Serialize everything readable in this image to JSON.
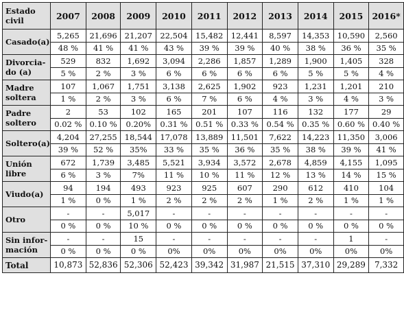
{
  "table": {
    "corner_label": "Estado civil",
    "years": [
      "2007",
      "2008",
      "2009",
      "2010",
      "2011",
      "2012",
      "2013",
      "2014",
      "2015",
      "2016*"
    ],
    "rows": [
      {
        "label": "Casado(a)",
        "counts": [
          "5,265",
          "21,696",
          "21,207",
          "22,504",
          "15,482",
          "12,441",
          "8,597",
          "14,353",
          "10,590",
          "2,560"
        ],
        "percents": [
          "48 %",
          "41 %",
          "41 %",
          "43 %",
          "39 %",
          "39 %",
          "40 %",
          "38 %",
          "36 %",
          "35 %"
        ]
      },
      {
        "label": "Divorcia-do (a)",
        "counts": [
          "529",
          "832",
          "1,692",
          "3,094",
          "2,286",
          "1,857",
          "1,289",
          "1,900",
          "1,405",
          "328"
        ],
        "percents": [
          "5 %",
          "2 %",
          "3 %",
          "6 %",
          "6 %",
          "6 %",
          "6 %",
          "5 %",
          "5 %",
          "4 %"
        ]
      },
      {
        "label": "Madre soltera",
        "counts": [
          "107",
          "1,067",
          "1,751",
          "3,138",
          "2,625",
          "1,902",
          "923",
          "1,231",
          "1,201",
          "210"
        ],
        "percents": [
          "1 %",
          "2 %",
          "3 %",
          "6 %",
          "7 %",
          "6 %",
          "4 %",
          "3 %",
          "4 %",
          "3 %"
        ]
      },
      {
        "label": "Padre soltero",
        "counts": [
          "2",
          "53",
          "102",
          "165",
          "201",
          "107",
          "116",
          "132",
          "177",
          "29"
        ],
        "percents": [
          "0.02 %",
          "0.10 %",
          "0.20%",
          "0.31 %",
          "0.51 %",
          "0.33 %",
          "0.54 %",
          "0.35 %",
          "0.60 %",
          "0.40 %"
        ]
      },
      {
        "label": "Soltero(a)",
        "counts": [
          "4,204",
          "27,255",
          "18,544",
          "17,078",
          "13,889",
          "11,501",
          "7,622",
          "14,223",
          "11,350",
          "3,006"
        ],
        "percents": [
          "39 %",
          "52 %",
          "35%",
          "33 %",
          "35 %",
          "36 %",
          "35 %",
          "38 %",
          "39 %",
          "41 %"
        ]
      },
      {
        "label": "Unión libre",
        "counts": [
          "672",
          "1,739",
          "3,485",
          "5,521",
          "3,934",
          "3,572",
          "2,678",
          "4,859",
          "4,155",
          "1,095"
        ],
        "percents": [
          "6 %",
          "3 %",
          "7%",
          "11 %",
          "10 %",
          "11 %",
          "12 %",
          "13 %",
          "14 %",
          "15 %"
        ]
      },
      {
        "label": "Viudo(a)",
        "counts": [
          "94",
          "194",
          "493",
          "923",
          "925",
          "607",
          "290",
          "612",
          "410",
          "104"
        ],
        "percents": [
          "1 %",
          "0 %",
          "1 %",
          "2 %",
          "2 %",
          "2 %",
          "1 %",
          "2 %",
          "1 %",
          "1 %"
        ]
      },
      {
        "label": "Otro",
        "counts": [
          "-",
          "-",
          "5,017",
          "-",
          "-",
          "-",
          "-",
          "-",
          "-",
          "-"
        ],
        "percents": [
          "0 %",
          "0 %",
          "10 %",
          "0 %",
          "0 %",
          "0 %",
          "0 %",
          "0 %",
          "0 %",
          "0 %"
        ]
      },
      {
        "label": "Sin infor-mación",
        "counts": [
          "-",
          "-",
          "15",
          "-",
          "-",
          "-",
          "-",
          "-",
          "1",
          "-"
        ],
        "percents": [
          "0 %",
          "0 %",
          "0 %",
          "0%",
          "0%",
          "0%",
          "0%",
          "0%",
          "0%",
          "0%"
        ]
      }
    ],
    "total": {
      "label": "Total",
      "values": [
        "10,873",
        "52,836",
        "52,306",
        "52,423",
        "39,342",
        "31,987",
        "21,515",
        "37,310",
        "29,289",
        "7,332"
      ]
    }
  }
}
